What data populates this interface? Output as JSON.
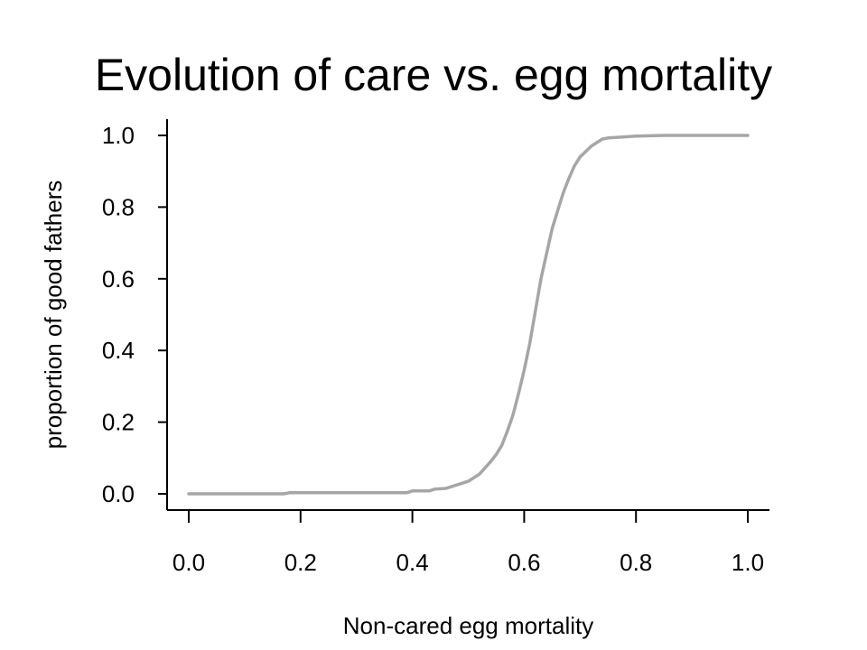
{
  "slide": {
    "title": "Evolution of care vs. egg mortality"
  },
  "chart_data": {
    "type": "line",
    "title": "Evolution of care vs. egg mortality",
    "xlabel": "Non-cared egg mortality",
    "ylabel": "proportion of good fathers",
    "xlim": [
      0.0,
      1.0
    ],
    "ylim": [
      0.0,
      1.0
    ],
    "xticks": [
      "0.0",
      "0.2",
      "0.4",
      "0.6",
      "0.8",
      "1.0"
    ],
    "yticks": [
      "0.0",
      "0.2",
      "0.4",
      "0.6",
      "0.8",
      "1.0"
    ],
    "grid": false,
    "legend": "none",
    "line_color": "#a6a6a6",
    "series": [
      {
        "x": [
          0.0,
          0.05,
          0.1,
          0.15,
          0.17,
          0.18,
          0.2,
          0.25,
          0.3,
          0.35,
          0.39,
          0.4,
          0.43,
          0.44,
          0.46,
          0.48,
          0.5,
          0.52,
          0.54,
          0.55,
          0.56,
          0.57,
          0.58,
          0.59,
          0.6,
          0.61,
          0.62,
          0.63,
          0.64,
          0.65,
          0.66,
          0.67,
          0.68,
          0.69,
          0.7,
          0.71,
          0.72,
          0.73,
          0.74,
          0.75,
          0.77,
          0.8,
          0.85,
          0.9,
          0.95,
          1.0
        ],
        "y": [
          0.0,
          0.0,
          0.0,
          0.0,
          0.0,
          0.003,
          0.003,
          0.003,
          0.003,
          0.003,
          0.003,
          0.008,
          0.008,
          0.013,
          0.015,
          0.025,
          0.035,
          0.055,
          0.09,
          0.11,
          0.135,
          0.175,
          0.22,
          0.28,
          0.345,
          0.42,
          0.51,
          0.6,
          0.67,
          0.74,
          0.79,
          0.84,
          0.88,
          0.915,
          0.94,
          0.955,
          0.97,
          0.98,
          0.99,
          0.993,
          0.995,
          0.998,
          1.0,
          1.0,
          1.0,
          1.0
        ]
      }
    ]
  }
}
